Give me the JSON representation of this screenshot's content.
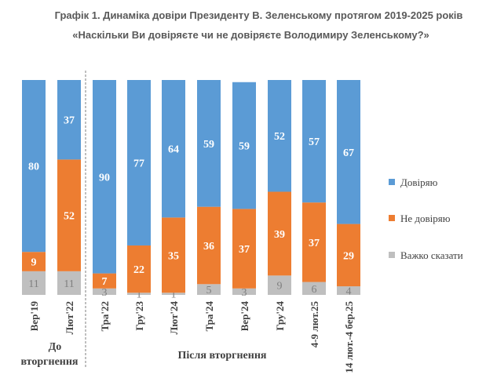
{
  "chart_data": {
    "type": "bar",
    "stacked": true,
    "title": "Графік 1. Динаміка довіри Президенту В. Зеленському протягом 2019-2025 років",
    "subtitle": "«Наскільки Ви довіряєте чи не довіряєте Володимиру Зеленському?»",
    "categories": [
      "Вер'19",
      "Лют'22",
      "Тра'22",
      "Гру'23",
      "Лют'24",
      "Тра'24",
      "Вер'24",
      "Гру'24",
      "4-9 лют.25",
      "14 лют.-4 бер.25"
    ],
    "series": [
      {
        "name": "Довіряю",
        "color": "#5b9bd5",
        "values": [
          80,
          37,
          90,
          77,
          64,
          59,
          59,
          52,
          57,
          67
        ]
      },
      {
        "name": "Не довіряю",
        "color": "#ed7d31",
        "values": [
          9,
          52,
          7,
          22,
          35,
          36,
          37,
          39,
          37,
          29
        ]
      },
      {
        "name": "Важко сказати",
        "color": "#bfbfbf",
        "values": [
          11,
          11,
          3,
          1,
          1,
          5,
          3,
          9,
          6,
          4
        ]
      }
    ],
    "groups": [
      {
        "label": "До вторгнення",
        "categories": [
          0,
          1
        ]
      },
      {
        "label": "Після вторгнення",
        "categories": [
          2,
          3,
          4,
          5,
          6,
          7,
          8,
          9
        ]
      }
    ],
    "ylim": [
      0,
      100
    ],
    "legend": "right"
  }
}
